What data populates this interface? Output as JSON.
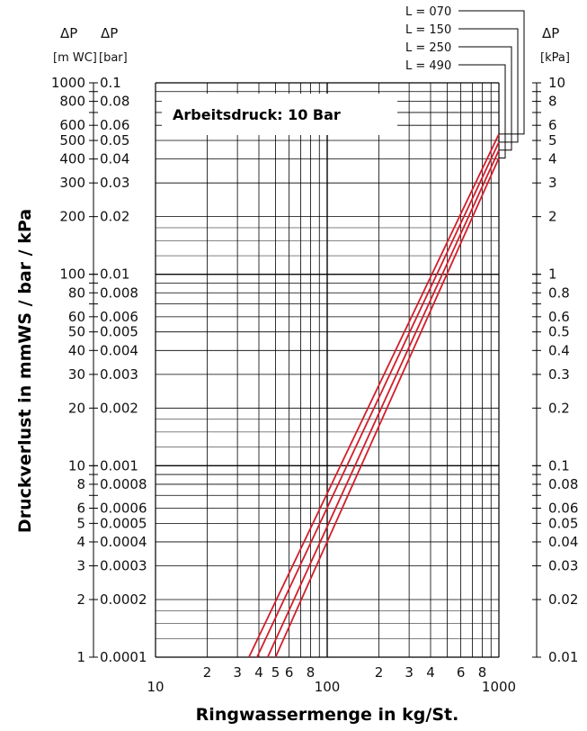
{
  "chart_data": {
    "type": "line",
    "title": "",
    "annotation": "Arbeitsdruck: 10 Bar",
    "xlabel": "Ringwassermenge in kg/St.",
    "ylabel": "Druckverlust in mmWS / bar / kPa",
    "x_scale": "log",
    "y_scale": "log",
    "xlim": [
      10,
      1000
    ],
    "ylim": [
      1,
      1000
    ],
    "grid": true,
    "x_ticks": [
      {
        "v": 10,
        "label": "10",
        "major": true
      },
      {
        "v": 20,
        "label": "2"
      },
      {
        "v": 30,
        "label": "3"
      },
      {
        "v": 40,
        "label": "4"
      },
      {
        "v": 50,
        "label": "5"
      },
      {
        "v": 60,
        "label": "6"
      },
      {
        "v": 80,
        "label": "8"
      },
      {
        "v": 100,
        "label": "100",
        "major": true
      },
      {
        "v": 200,
        "label": "2"
      },
      {
        "v": 300,
        "label": "3"
      },
      {
        "v": 400,
        "label": "4"
      },
      {
        "v": 600,
        "label": "6"
      },
      {
        "v": 800,
        "label": "8"
      },
      {
        "v": 1000,
        "label": "1000",
        "major": true
      }
    ],
    "y_axes": {
      "left_outer": {
        "header": [
          "ΔP",
          "[m WC]"
        ],
        "ticks": [
          {
            "v": 1000,
            "label": "1000"
          },
          {
            "v": 800,
            "label": "800"
          },
          {
            "v": 600,
            "label": "600"
          },
          {
            "v": 500,
            "label": "500"
          },
          {
            "v": 400,
            "label": "400"
          },
          {
            "v": 300,
            "label": "300"
          },
          {
            "v": 200,
            "label": "200"
          },
          {
            "v": 100,
            "label": "100"
          },
          {
            "v": 80,
            "label": "80"
          },
          {
            "v": 60,
            "label": "60"
          },
          {
            "v": 50,
            "label": "50"
          },
          {
            "v": 40,
            "label": "40"
          },
          {
            "v": 30,
            "label": "30"
          },
          {
            "v": 20,
            "label": "20"
          },
          {
            "v": 10,
            "label": "10"
          },
          {
            "v": 8,
            "label": "8"
          },
          {
            "v": 6,
            "label": "6"
          },
          {
            "v": 5,
            "label": "5"
          },
          {
            "v": 4,
            "label": "4"
          },
          {
            "v": 3,
            "label": "3"
          },
          {
            "v": 2,
            "label": "2"
          },
          {
            "v": 1,
            "label": "1"
          }
        ]
      },
      "left_inner": {
        "header": [
          "ΔP",
          "[bar]"
        ],
        "ticks": [
          {
            "v": 1000,
            "label": "0.1"
          },
          {
            "v": 800,
            "label": "0.08"
          },
          {
            "v": 600,
            "label": "0.06"
          },
          {
            "v": 500,
            "label": "0.05"
          },
          {
            "v": 400,
            "label": "0.04"
          },
          {
            "v": 300,
            "label": "0.03"
          },
          {
            "v": 200,
            "label": "0.02"
          },
          {
            "v": 100,
            "label": "0.01"
          },
          {
            "v": 80,
            "label": "0.008"
          },
          {
            "v": 60,
            "label": "0.006"
          },
          {
            "v": 50,
            "label": "0.005"
          },
          {
            "v": 40,
            "label": "0.004"
          },
          {
            "v": 30,
            "label": "0.003"
          },
          {
            "v": 20,
            "label": "0.002"
          },
          {
            "v": 10,
            "label": "0.001"
          },
          {
            "v": 8,
            "label": "0.0008"
          },
          {
            "v": 6,
            "label": "0.0006"
          },
          {
            "v": 5,
            "label": "0.0005"
          },
          {
            "v": 4,
            "label": "0.0004"
          },
          {
            "v": 3,
            "label": "0.0003"
          },
          {
            "v": 2,
            "label": "0.0002"
          },
          {
            "v": 1,
            "label": "0.0001"
          }
        ]
      },
      "right": {
        "header": [
          "ΔP",
          "[kPa]"
        ],
        "ticks": [
          {
            "v": 1000,
            "label": "10"
          },
          {
            "v": 800,
            "label": "8"
          },
          {
            "v": 600,
            "label": "6"
          },
          {
            "v": 500,
            "label": "5"
          },
          {
            "v": 400,
            "label": "4"
          },
          {
            "v": 300,
            "label": "3"
          },
          {
            "v": 200,
            "label": "2"
          },
          {
            "v": 100,
            "label": "1"
          },
          {
            "v": 80,
            "label": "0.8"
          },
          {
            "v": 60,
            "label": "0.6"
          },
          {
            "v": 50,
            "label": "0.5"
          },
          {
            "v": 40,
            "label": "0.4"
          },
          {
            "v": 30,
            "label": "0.3"
          },
          {
            "v": 20,
            "label": "0.2"
          },
          {
            "v": 10,
            "label": "0.1"
          },
          {
            "v": 8,
            "label": "0.08"
          },
          {
            "v": 6,
            "label": "0.06"
          },
          {
            "v": 5,
            "label": "0.05"
          },
          {
            "v": 4,
            "label": "0.04"
          },
          {
            "v": 3,
            "label": "0.03"
          },
          {
            "v": 2,
            "label": "0.02"
          },
          {
            "v": 1,
            "label": "0.01"
          }
        ]
      }
    },
    "series": [
      {
        "name": "L = 070",
        "color": "#d21e2b",
        "points": [
          [
            35,
            1
          ],
          [
            1000,
            540
          ]
        ]
      },
      {
        "name": "L = 150",
        "color": "#d21e2b",
        "points": [
          [
            39,
            1
          ],
          [
            1000,
            490
          ]
        ]
      },
      {
        "name": "L = 250",
        "color": "#d21e2b",
        "points": [
          [
            45,
            1
          ],
          [
            1000,
            445
          ]
        ]
      },
      {
        "name": "L = 490",
        "color": "#d21e2b",
        "points": [
          [
            50,
            1
          ],
          [
            1000,
            405
          ]
        ]
      }
    ],
    "legend_position": "top-right"
  }
}
